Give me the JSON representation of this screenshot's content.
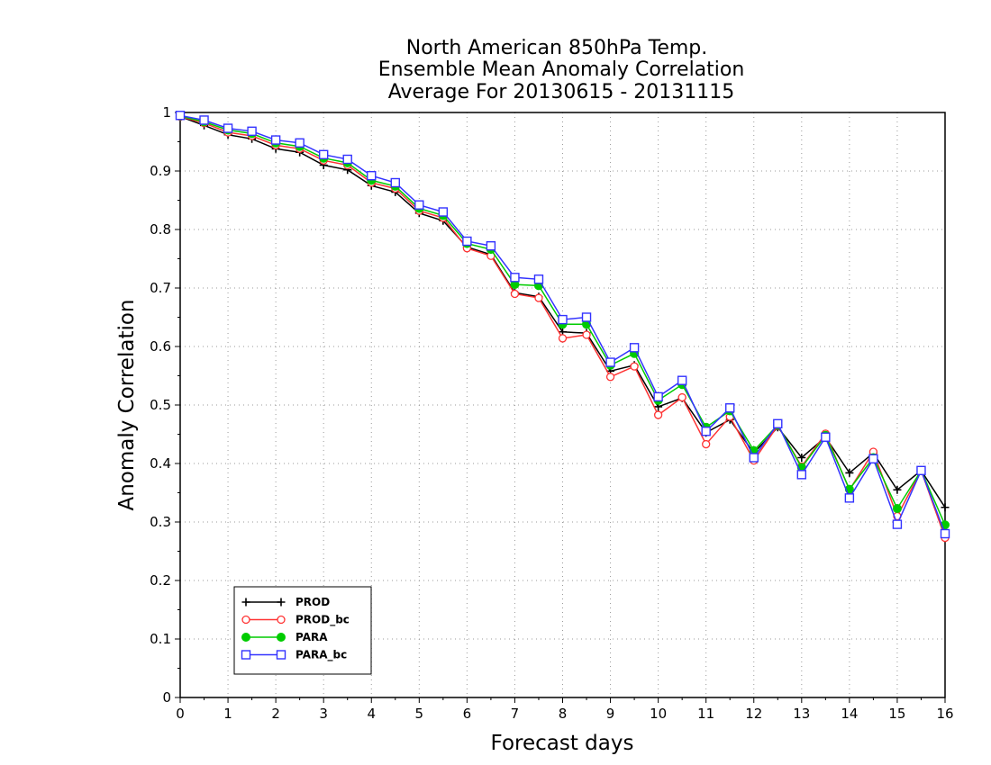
{
  "chart_data": {
    "type": "line",
    "title": [
      "North American 850hPa Temp.",
      "Ensemble Mean Anomaly Correlation",
      "Average For 20130615 - 20131115"
    ],
    "xlabel": "Forecast days",
    "ylabel": "Anomaly Correlation",
    "xlim": [
      0,
      16
    ],
    "ylim": [
      0,
      1
    ],
    "xticks": [
      "0",
      "1",
      "2",
      "3",
      "4",
      "5",
      "6",
      "7",
      "8",
      "9",
      "10",
      "11",
      "12",
      "13",
      "14",
      "15",
      "16"
    ],
    "yticks": [
      "0",
      "0.1",
      "0.2",
      "0.3",
      "0.4",
      "0.5",
      "0.6",
      "0.7",
      "0.8",
      "0.9",
      "1"
    ],
    "grid": true,
    "legend_position": "bottom-left",
    "x": [
      0,
      0.5,
      1,
      1.5,
      2,
      2.5,
      3,
      3.5,
      4,
      4.5,
      5,
      5.5,
      6,
      6.5,
      7,
      7.5,
      8,
      8.5,
      9,
      9.5,
      10,
      10.5,
      11,
      11.5,
      12,
      12.5,
      13,
      13.5,
      14,
      14.5,
      15,
      15.5,
      16
    ],
    "series": [
      {
        "name": "PROD",
        "color": "#000000",
        "marker": "plus",
        "values": [
          0.993,
          0.978,
          0.962,
          0.955,
          0.938,
          0.932,
          0.91,
          0.902,
          0.875,
          0.864,
          0.828,
          0.815,
          0.77,
          0.757,
          0.692,
          0.685,
          0.625,
          0.623,
          0.558,
          0.568,
          0.497,
          0.512,
          0.453,
          0.475,
          0.418,
          0.462,
          0.41,
          0.445,
          0.384,
          0.418,
          0.355,
          0.388,
          0.325
        ]
      },
      {
        "name": "PROD_bc",
        "color": "#ff3333",
        "marker": "circle-open",
        "values": [
          0.993,
          0.982,
          0.966,
          0.96,
          0.944,
          0.938,
          0.918,
          0.91,
          0.88,
          0.87,
          0.832,
          0.82,
          0.768,
          0.755,
          0.69,
          0.683,
          0.614,
          0.62,
          0.548,
          0.566,
          0.483,
          0.513,
          0.433,
          0.48,
          0.405,
          0.465,
          0.395,
          0.451,
          0.355,
          0.42,
          0.31,
          0.388,
          0.273
        ]
      },
      {
        "name": "PARA",
        "color": "#00cc00",
        "marker": "circle-filled",
        "values": [
          0.994,
          0.984,
          0.97,
          0.964,
          0.948,
          0.942,
          0.922,
          0.914,
          0.884,
          0.874,
          0.836,
          0.824,
          0.776,
          0.766,
          0.706,
          0.704,
          0.638,
          0.638,
          0.568,
          0.588,
          0.508,
          0.535,
          0.462,
          0.49,
          0.422,
          0.466,
          0.393,
          0.448,
          0.356,
          0.41,
          0.323,
          0.388,
          0.295
        ]
      },
      {
        "name": "PARA_bc",
        "color": "#3333ff",
        "marker": "square-open",
        "values": [
          0.995,
          0.987,
          0.973,
          0.968,
          0.953,
          0.948,
          0.928,
          0.92,
          0.892,
          0.88,
          0.842,
          0.83,
          0.78,
          0.772,
          0.718,
          0.715,
          0.646,
          0.65,
          0.573,
          0.598,
          0.514,
          0.542,
          0.455,
          0.495,
          0.41,
          0.468,
          0.381,
          0.445,
          0.341,
          0.408,
          0.296,
          0.388,
          0.28
        ]
      }
    ]
  }
}
